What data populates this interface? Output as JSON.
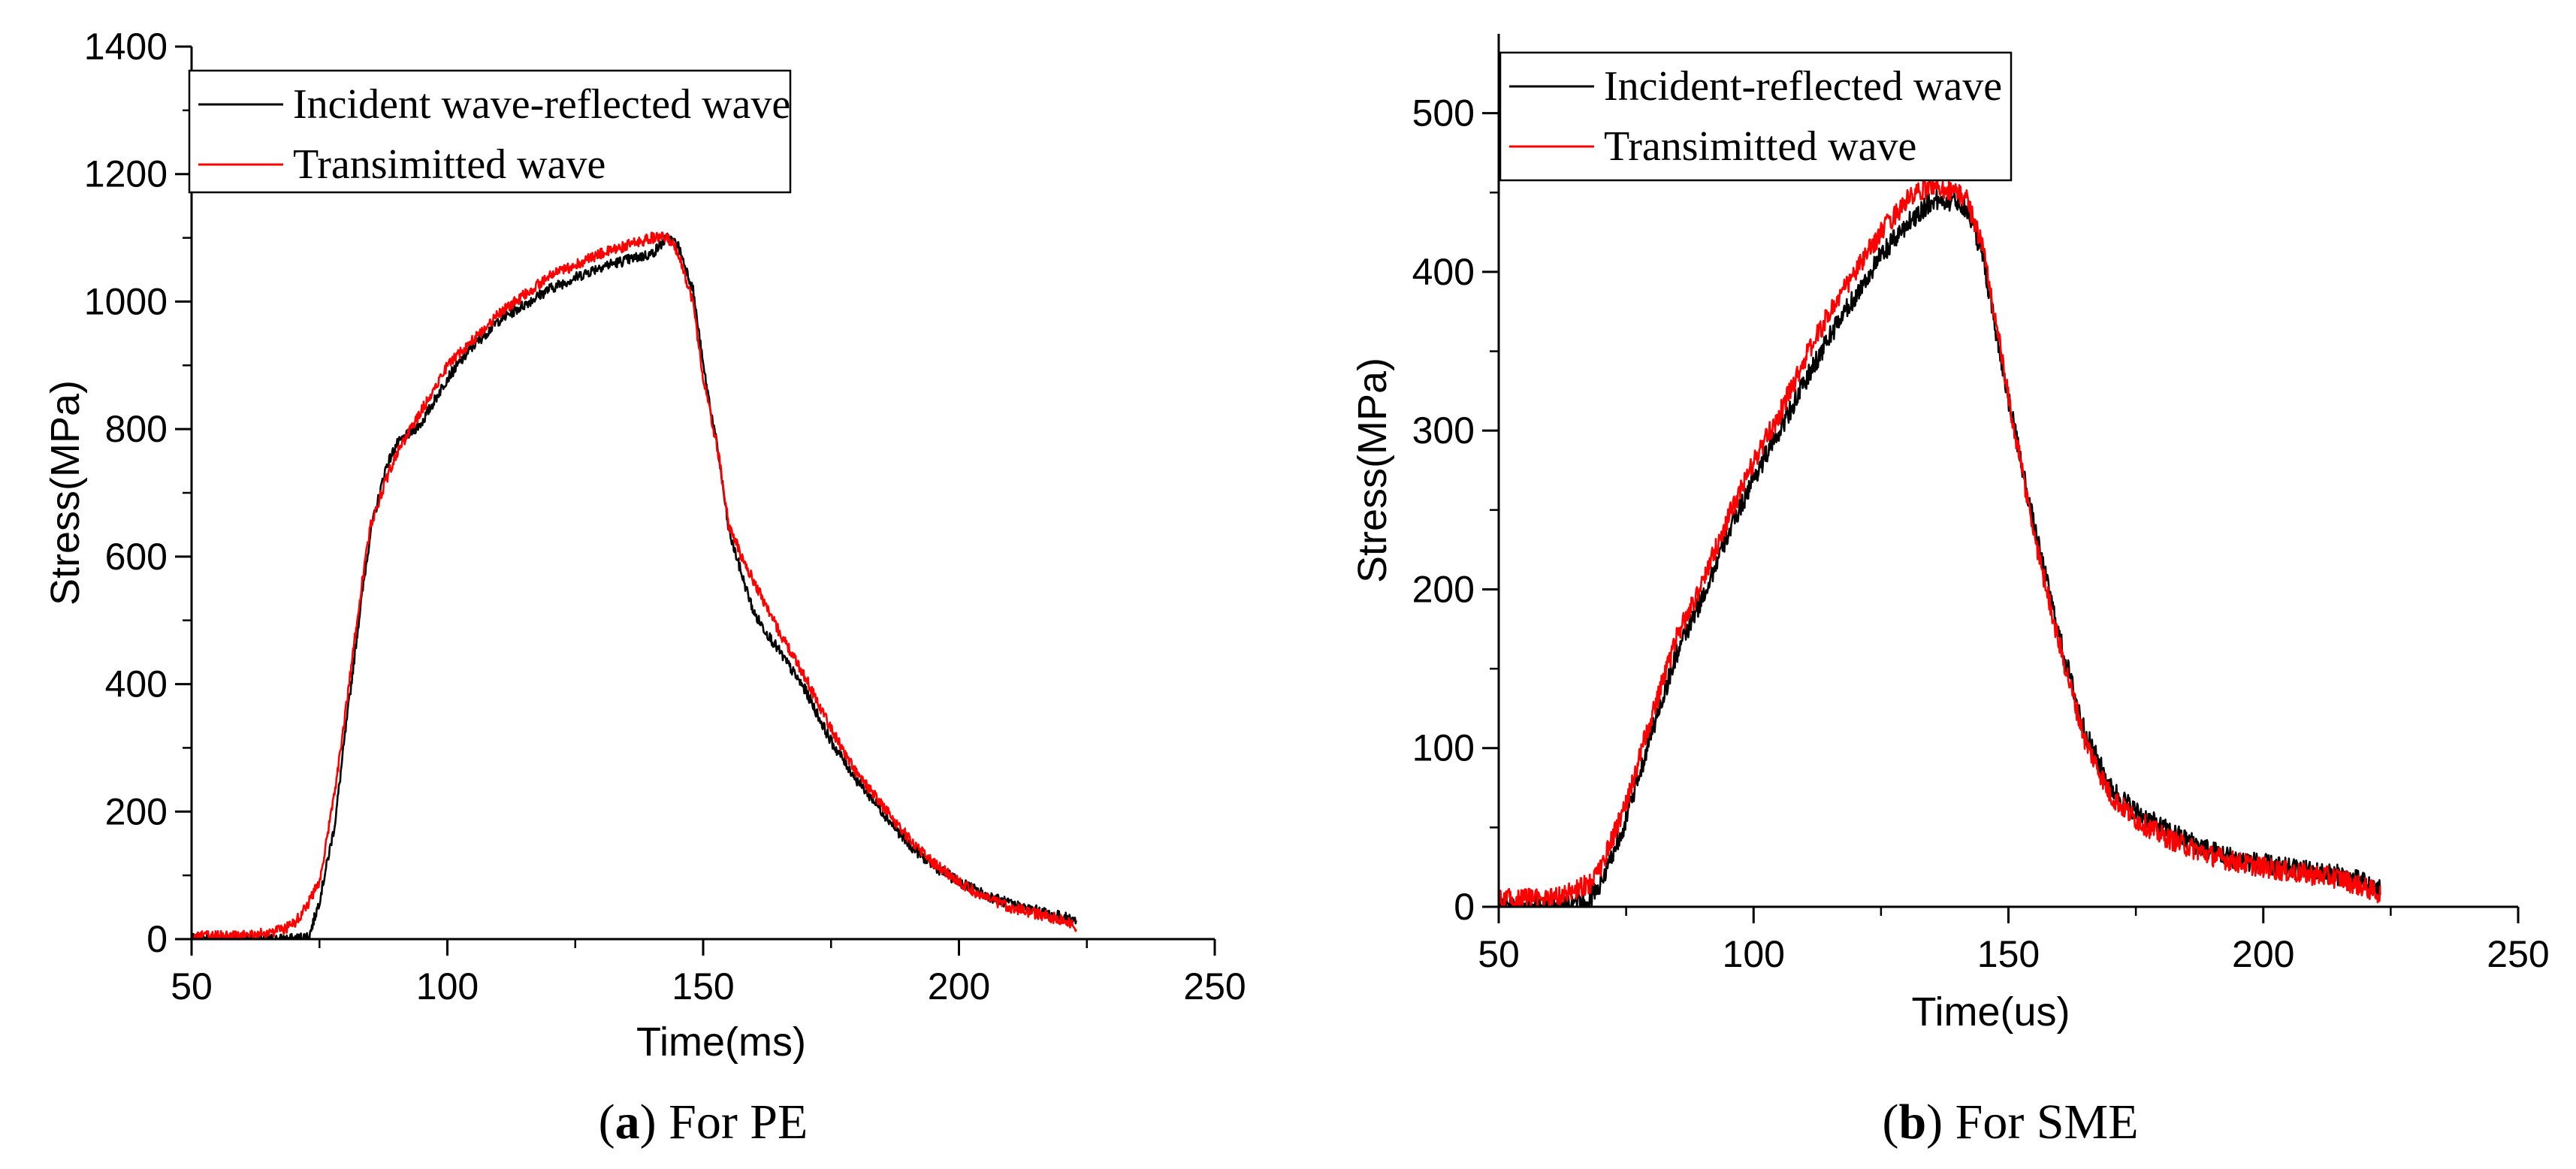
{
  "chart_data": [
    {
      "type": "line",
      "panel": "a",
      "caption_label": "a",
      "caption_text": "For PE",
      "title": "",
      "xlabel": "Time(ms)",
      "ylabel": "Stress(MPa)",
      "xlim": [
        50,
        250
      ],
      "ylim": [
        0,
        1400
      ],
      "xticks": [
        50,
        100,
        150,
        200,
        250
      ],
      "yticks": [
        0,
        200,
        400,
        600,
        800,
        1000,
        1200,
        1400
      ],
      "grid": false,
      "legend_position": "top-left",
      "series": [
        {
          "name": "Incident wave-reflected wave",
          "color": "#000000",
          "x": [
            50,
            60,
            70,
            73,
            75,
            78,
            80,
            83,
            85,
            88,
            90,
            95,
            100,
            105,
            110,
            120,
            130,
            140,
            143,
            145,
            148,
            150,
            153,
            155,
            158,
            160,
            165,
            170,
            175,
            180,
            185,
            190,
            195,
            200,
            205,
            210,
            215,
            220,
            223
          ],
          "y": [
            0,
            0,
            0,
            5,
            60,
            180,
            320,
            520,
            640,
            740,
            775,
            810,
            880,
            930,
            970,
            1020,
            1055,
            1075,
            1100,
            1090,
            1020,
            900,
            760,
            640,
            560,
            510,
            450,
            390,
            310,
            250,
            200,
            150,
            115,
            90,
            70,
            55,
            45,
            35,
            30
          ]
        },
        {
          "name": "Transimitted wave",
          "color": "#ff0000",
          "x": [
            50,
            60,
            65,
            68,
            70,
            72,
            75,
            78,
            80,
            83,
            85,
            88,
            90,
            95,
            100,
            105,
            110,
            120,
            130,
            140,
            143,
            145,
            148,
            150,
            153,
            155,
            158,
            160,
            165,
            170,
            175,
            180,
            185,
            190,
            195,
            200,
            205,
            210,
            215,
            220,
            223
          ],
          "y": [
            5,
            5,
            10,
            15,
            25,
            45,
            90,
            230,
            350,
            540,
            650,
            720,
            760,
            830,
            900,
            940,
            980,
            1040,
            1075,
            1100,
            1100,
            1080,
            1000,
            880,
            760,
            650,
            590,
            560,
            480,
            410,
            330,
            260,
            210,
            160,
            120,
            90,
            65,
            50,
            40,
            30,
            20
          ]
        }
      ]
    },
    {
      "type": "line",
      "panel": "b",
      "caption_label": "b",
      "caption_text": "For SME",
      "title": "",
      "xlabel": "Time(us)",
      "ylabel": "Stress(MPa)",
      "xlim": [
        50,
        250
      ],
      "ylim": [
        0,
        550
      ],
      "xticks": [
        50,
        100,
        150,
        200,
        250
      ],
      "yticks": [
        0,
        100,
        200,
        300,
        400,
        500
      ],
      "grid": false,
      "legend_position": "top-left",
      "series": [
        {
          "name": "Incident-reflected wave",
          "color": "#000000",
          "x": [
            50,
            60,
            65,
            68,
            70,
            75,
            80,
            85,
            90,
            95,
            100,
            105,
            110,
            115,
            120,
            125,
            130,
            135,
            140,
            142,
            145,
            148,
            150,
            155,
            160,
            165,
            170,
            175,
            180,
            185,
            190,
            195,
            200,
            205,
            210,
            215,
            220,
            223
          ],
          "y": [
            0,
            0,
            0,
            5,
            15,
            55,
            110,
            160,
            195,
            235,
            270,
            300,
            330,
            360,
            385,
            410,
            430,
            445,
            445,
            440,
            410,
            355,
            320,
            240,
            170,
            110,
            75,
            60,
            50,
            42,
            35,
            30,
            27,
            24,
            22,
            20,
            15,
            10
          ]
        },
        {
          "name": "Transimitted wave",
          "color": "#ff0000",
          "x": [
            50,
            60,
            65,
            68,
            70,
            75,
            80,
            85,
            90,
            95,
            100,
            105,
            110,
            115,
            120,
            125,
            130,
            135,
            140,
            142,
            145,
            148,
            150,
            155,
            160,
            165,
            170,
            175,
            180,
            185,
            190,
            195,
            200,
            205,
            210,
            215,
            220,
            223
          ],
          "y": [
            5,
            5,
            10,
            15,
            25,
            65,
            120,
            170,
            205,
            245,
            280,
            310,
            345,
            375,
            400,
            425,
            445,
            455,
            450,
            445,
            415,
            360,
            320,
            235,
            165,
            105,
            70,
            55,
            45,
            38,
            32,
            28,
            25,
            22,
            20,
            18,
            12,
            8
          ]
        }
      ]
    }
  ]
}
